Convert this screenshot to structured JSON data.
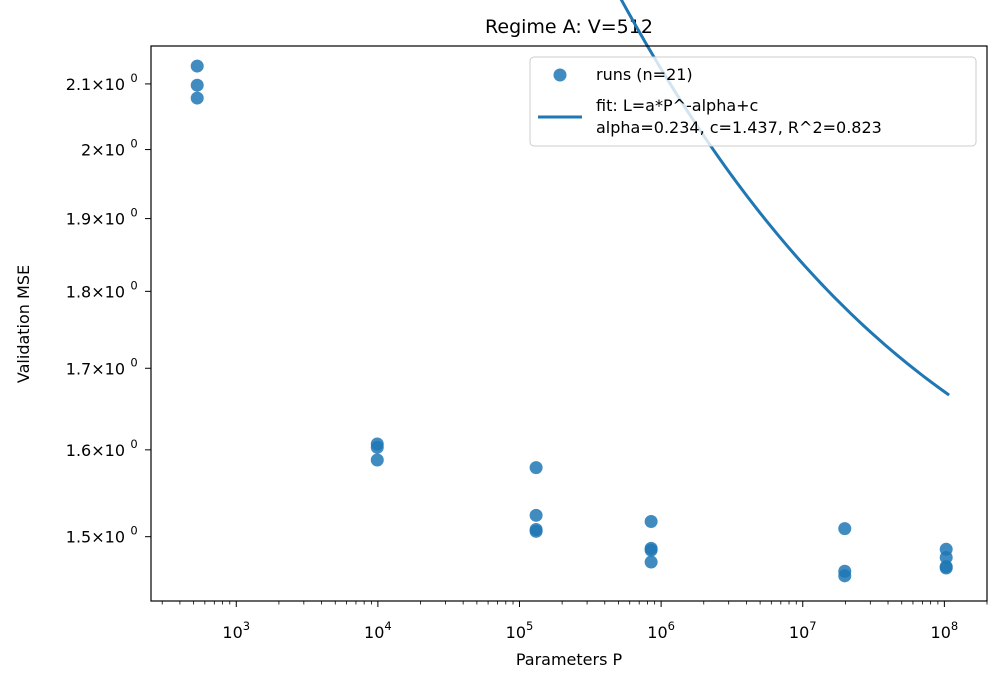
{
  "chart_data": {
    "type": "scatter",
    "title": "Regime A: V=512",
    "xlabel": "Parameters P",
    "ylabel": "Validation MSE",
    "xscale": "log",
    "yscale": "log",
    "xlim": [
      250,
      200000000
    ],
    "ylim": [
      1.43,
      2.16
    ],
    "x_ticks": [
      {
        "value": 1000,
        "base": "10",
        "exp": "3"
      },
      {
        "value": 10000,
        "base": "10",
        "exp": "4"
      },
      {
        "value": 100000,
        "base": "10",
        "exp": "5"
      },
      {
        "value": 1000000,
        "base": "10",
        "exp": "6"
      },
      {
        "value": 10000000,
        "base": "10",
        "exp": "7"
      },
      {
        "value": 100000000,
        "base": "10",
        "exp": "8"
      }
    ],
    "y_ticks": [
      {
        "value": 1.5,
        "mant": "1.5",
        "exp": "0"
      },
      {
        "value": 1.6,
        "mant": "1.6",
        "exp": "0"
      },
      {
        "value": 1.7,
        "mant": "1.7",
        "exp": "0"
      },
      {
        "value": 1.8,
        "mant": "1.8",
        "exp": "0"
      },
      {
        "value": 1.9,
        "mant": "1.9",
        "exp": "0"
      },
      {
        "value": 2.0,
        "mant": "2",
        "exp": "0"
      },
      {
        "value": 2.1,
        "mant": "2.1",
        "exp": "0"
      }
    ],
    "series": [
      {
        "name": "runs (n=21)",
        "kind": "scatter",
        "color": "#1f77b4",
        "points": [
          {
            "x": 530,
            "y": 2.128
          },
          {
            "x": 530,
            "y": 2.098
          },
          {
            "x": 530,
            "y": 2.078
          },
          {
            "x": 9900,
            "y": 1.607
          },
          {
            "x": 9900,
            "y": 1.603
          },
          {
            "x": 9900,
            "y": 1.588
          },
          {
            "x": 131000,
            "y": 1.579
          },
          {
            "x": 131000,
            "y": 1.524
          },
          {
            "x": 131000,
            "y": 1.508
          },
          {
            "x": 131000,
            "y": 1.506
          },
          {
            "x": 850000,
            "y": 1.517
          },
          {
            "x": 850000,
            "y": 1.487
          },
          {
            "x": 850000,
            "y": 1.485
          },
          {
            "x": 850000,
            "y": 1.472
          },
          {
            "x": 19800000,
            "y": 1.509
          },
          {
            "x": 19800000,
            "y": 1.462
          },
          {
            "x": 19800000,
            "y": 1.457
          },
          {
            "x": 103000000,
            "y": 1.486
          },
          {
            "x": 103000000,
            "y": 1.477
          },
          {
            "x": 103000000,
            "y": 1.467
          },
          {
            "x": 103000000,
            "y": 1.4655
          }
        ]
      },
      {
        "name": "fit: L=a*P^-alpha+c",
        "name_line2": "alpha=0.234, c=1.437, R^2=0.823",
        "kind": "line",
        "color": "#1f77b4",
        "alpha": 0.234,
        "c": 1.437,
        "a": 17.4,
        "x_range": [
          470,
          108000000
        ]
      }
    ],
    "legend_position": "top-right"
  }
}
